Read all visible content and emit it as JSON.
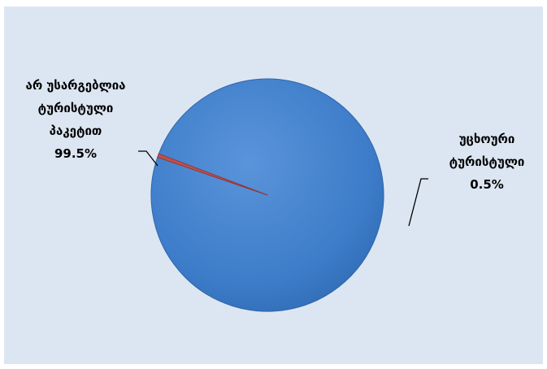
{
  "chart_data": {
    "type": "pie",
    "slices": [
      {
        "label_lines": [
          "არ უსარგებლია",
          "ტურისტული",
          "პაკეტით"
        ],
        "value": 99.5,
        "value_label": "99.5%",
        "color": "#3D7CC9"
      },
      {
        "label_lines": [
          "უცხოური",
          "ტურისტული"
        ],
        "value": 0.5,
        "value_label": "0.5%",
        "color": "#C0504D"
      }
    ],
    "legend": "none",
    "background_color": "#DCE6F2"
  }
}
